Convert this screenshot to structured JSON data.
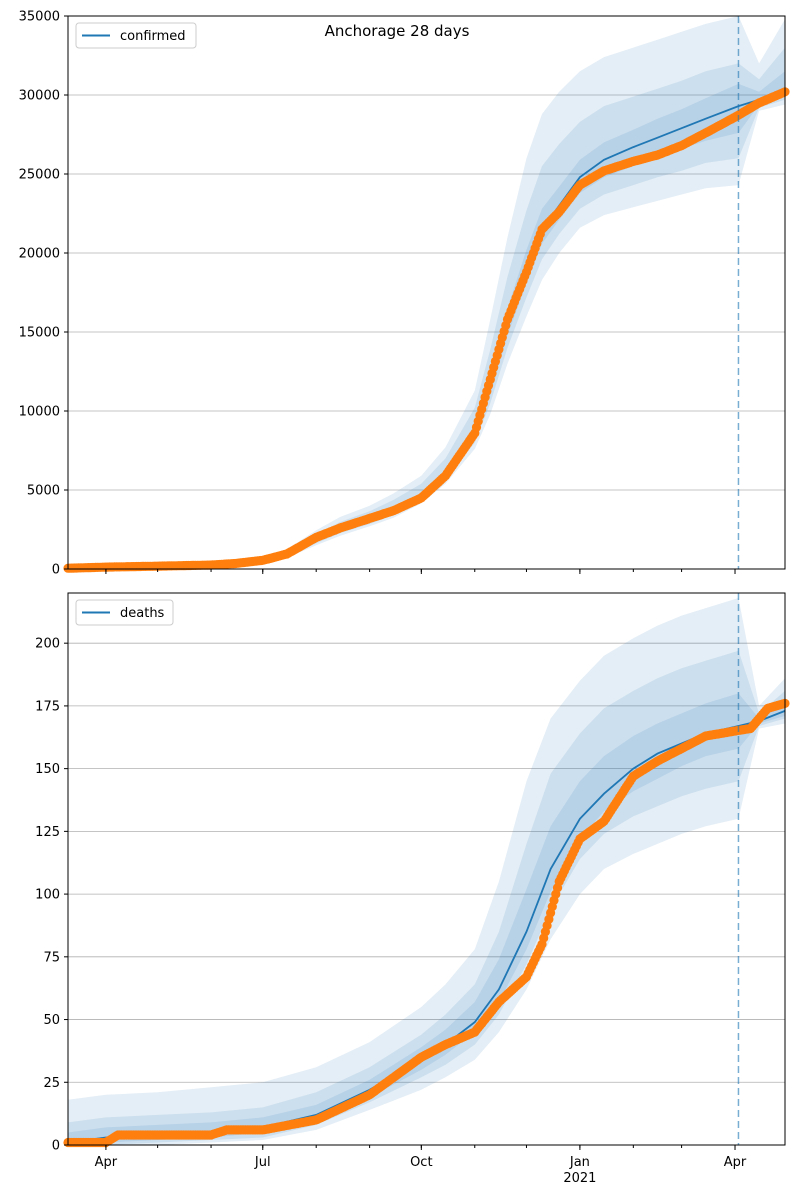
{
  "colors": {
    "model_line": "#1f77b4",
    "observed": "#ff7f0e",
    "band": "#1f77b4",
    "grid": "#b0b0b0",
    "forecast_line": "#1f77b4"
  },
  "chart_data": [
    {
      "type": "line",
      "title": "Anchorage 28 days",
      "legend": [
        "confirmed"
      ],
      "legend_placement": "top-left",
      "grid": "y",
      "ylim": [
        0,
        35000
      ],
      "yticks": [
        0,
        5000,
        10000,
        15000,
        20000,
        25000,
        30000,
        35000
      ],
      "xlim": [
        "2020-03-10",
        "2021-04-30"
      ],
      "xticks": [
        {
          "date": "2020-04-01",
          "label": "Apr"
        },
        {
          "date": "2020-07-01",
          "label": "Jul"
        },
        {
          "date": "2020-10-01",
          "label": "Oct"
        },
        {
          "date": "2021-01-01",
          "label": "Jan"
        },
        {
          "date": "2021-04-01",
          "label": "Apr"
        }
      ],
      "forecast_start": "2021-04-03",
      "series": [
        {
          "name": "confirmed",
          "role": "model",
          "x": [
            "2020-03-10",
            "2020-04-01",
            "2020-05-01",
            "2020-06-01",
            "2020-06-15",
            "2020-07-01",
            "2020-07-15",
            "2020-08-01",
            "2020-08-15",
            "2020-09-01",
            "2020-09-15",
            "2020-10-01",
            "2020-10-15",
            "2020-11-01",
            "2020-11-10",
            "2020-11-20",
            "2020-12-01",
            "2020-12-10",
            "2020-12-20",
            "2021-01-01",
            "2021-01-15",
            "2021-02-01",
            "2021-02-15",
            "2021-03-01",
            "2021-03-15",
            "2021-04-03",
            "2021-04-15",
            "2021-04-30"
          ],
          "y": [
            50,
            120,
            180,
            250,
            350,
            550,
            900,
            1800,
            2500,
            3100,
            3700,
            4600,
            6000,
            8600,
            11500,
            15500,
            19000,
            21500,
            23000,
            24800,
            25900,
            26700,
            27300,
            27900,
            28500,
            29300,
            29700,
            30300
          ]
        },
        {
          "name": "observed",
          "role": "observed",
          "x": [
            "2020-03-10",
            "2020-04-01",
            "2020-05-01",
            "2020-06-01",
            "2020-06-15",
            "2020-07-01",
            "2020-07-15",
            "2020-08-01",
            "2020-08-15",
            "2020-09-01",
            "2020-09-15",
            "2020-10-01",
            "2020-10-15",
            "2020-11-01",
            "2020-11-10",
            "2020-11-20",
            "2020-12-01",
            "2020-12-10",
            "2020-12-20",
            "2021-01-01",
            "2021-01-15",
            "2021-02-01",
            "2021-02-15",
            "2021-03-01",
            "2021-03-15",
            "2021-04-01",
            "2021-04-15",
            "2021-04-30"
          ],
          "y": [
            50,
            120,
            180,
            250,
            350,
            550,
            950,
            2000,
            2600,
            3200,
            3700,
            4500,
            5900,
            8600,
            12000,
            15800,
            18800,
            21500,
            22600,
            24300,
            25200,
            25800,
            26200,
            26800,
            27600,
            28600,
            29500,
            30200
          ]
        }
      ],
      "bands": [
        {
          "lower": [
            20,
            60,
            110,
            170,
            250,
            420,
            700,
            1500,
            2100,
            2700,
            3250,
            4150,
            5400,
            7600,
            9800,
            13000,
            16000,
            18300,
            20000,
            21600,
            22400,
            22900,
            23300,
            23700,
            24100,
            24300,
            29000,
            29400
          ],
          "upper": [
            90,
            190,
            270,
            360,
            500,
            780,
            1250,
            2450,
            3300,
            4000,
            4800,
            5900,
            7700,
            11300,
            15800,
            21000,
            26000,
            28800,
            30200,
            31500,
            32400,
            33000,
            33500,
            34000,
            34500,
            35000,
            32000,
            34800
          ]
        },
        {
          "lower": [
            30,
            80,
            130,
            195,
            285,
            470,
            780,
            1620,
            2270,
            2850,
            3420,
            4330,
            5650,
            8000,
            10500,
            14000,
            17200,
            19600,
            21200,
            22800,
            23700,
            24300,
            24800,
            25200,
            25700,
            26000,
            29200,
            29700
          ],
          "upper": [
            75,
            165,
            240,
            320,
            445,
            700,
            1110,
            2200,
            2980,
            3650,
            4380,
            5400,
            7000,
            10200,
            13900,
            18500,
            22700,
            25500,
            26900,
            28300,
            29300,
            29900,
            30400,
            30900,
            31500,
            32000,
            31000,
            33000
          ]
        },
        {
          "lower": [
            40,
            100,
            155,
            225,
            320,
            510,
            840,
            1700,
            2390,
            2980,
            3560,
            4470,
            5830,
            8300,
            11000,
            14800,
            18100,
            20600,
            22100,
            23800,
            24800,
            25500,
            26000,
            26600,
            27100,
            27600,
            29400,
            30000
          ],
          "upper": [
            60,
            140,
            205,
            280,
            390,
            610,
            980,
            1950,
            2650,
            3270,
            3870,
            4780,
            6250,
            9100,
            12300,
            16500,
            20200,
            22800,
            24200,
            25900,
            27000,
            27800,
            28500,
            29100,
            29800,
            30700,
            30200,
            31500
          ]
        }
      ]
    },
    {
      "type": "line",
      "title": "",
      "legend": [
        "deaths"
      ],
      "legend_placement": "top-left",
      "grid": "y",
      "ylim": [
        0,
        220
      ],
      "yticks": [
        0,
        25,
        50,
        75,
        100,
        125,
        150,
        175,
        200
      ],
      "xlim": [
        "2020-03-10",
        "2021-04-30"
      ],
      "xticks": [
        {
          "date": "2020-04-01",
          "label": "Apr"
        },
        {
          "date": "2020-07-01",
          "label": "Jul"
        },
        {
          "date": "2020-10-01",
          "label": "Oct"
        },
        {
          "date": "2021-01-01",
          "label": "Jan",
          "sublabel": "2021"
        },
        {
          "date": "2021-04-01",
          "label": "Apr"
        }
      ],
      "forecast_start": "2021-04-03",
      "series": [
        {
          "name": "deaths",
          "role": "model",
          "x": [
            "2020-03-10",
            "2020-04-01",
            "2020-05-01",
            "2020-06-01",
            "2020-07-01",
            "2020-08-01",
            "2020-09-01",
            "2020-10-01",
            "2020-10-15",
            "2020-11-01",
            "2020-11-15",
            "2020-12-01",
            "2020-12-15",
            "2021-01-01",
            "2021-01-15",
            "2021-02-01",
            "2021-02-15",
            "2021-03-01",
            "2021-03-15",
            "2021-04-03",
            "2021-04-15",
            "2021-04-30"
          ],
          "y": [
            1,
            3,
            4,
            5,
            7,
            12,
            22,
            34,
            40,
            49,
            62,
            85,
            110,
            130,
            140,
            150,
            156,
            160,
            164,
            167,
            169,
            173
          ]
        },
        {
          "name": "observed",
          "role": "observed",
          "x": [
            "2020-03-10",
            "2020-04-01",
            "2020-04-08",
            "2020-05-01",
            "2020-06-01",
            "2020-06-10",
            "2020-07-01",
            "2020-08-01",
            "2020-09-01",
            "2020-10-01",
            "2020-10-15",
            "2020-11-01",
            "2020-11-15",
            "2020-12-01",
            "2020-12-10",
            "2020-12-20",
            "2021-01-01",
            "2021-01-15",
            "2021-02-01",
            "2021-02-15",
            "2021-03-01",
            "2021-03-15",
            "2021-04-01",
            "2021-04-10",
            "2021-04-20",
            "2021-04-30"
          ],
          "y": [
            1,
            1,
            4,
            4,
            4,
            6,
            6,
            10,
            20,
            35,
            40,
            45,
            57,
            67,
            80,
            105,
            122,
            129,
            147,
            153,
            158,
            163,
            165,
            166,
            174,
            176
          ]
        }
      ],
      "bands": [
        {
          "lower": [
            0,
            0,
            0,
            1,
            2,
            6,
            14,
            22,
            27,
            34,
            45,
            62,
            82,
            100,
            110,
            116,
            120,
            124,
            127,
            130,
            166,
            168
          ],
          "upper": [
            18,
            20,
            21,
            23,
            25,
            31,
            41,
            55,
            64,
            78,
            105,
            145,
            170,
            185,
            195,
            202,
            207,
            211,
            214,
            218,
            175,
            186
          ]
        },
        {
          "lower": [
            0,
            0,
            1,
            2,
            3,
            8,
            17,
            27,
            32,
            40,
            52,
            72,
            94,
            114,
            124,
            131,
            135,
            139,
            142,
            145,
            167,
            170
          ],
          "upper": [
            9,
            11,
            12,
            13,
            15,
            21,
            31,
            44,
            52,
            64,
            85,
            120,
            148,
            164,
            174,
            181,
            186,
            190,
            193,
            197,
            172,
            181
          ]
        },
        {
          "lower": [
            0,
            1,
            2,
            3,
            5,
            10,
            19,
            30,
            36,
            45,
            57,
            78,
            101,
            122,
            133,
            141,
            146,
            151,
            155,
            158,
            168,
            171
          ],
          "upper": [
            5,
            7,
            8,
            9,
            11,
            16,
            26,
            39,
            46,
            57,
            74,
            102,
            127,
            145,
            155,
            163,
            168,
            172,
            176,
            180,
            170,
            177
          ]
        }
      ]
    }
  ]
}
